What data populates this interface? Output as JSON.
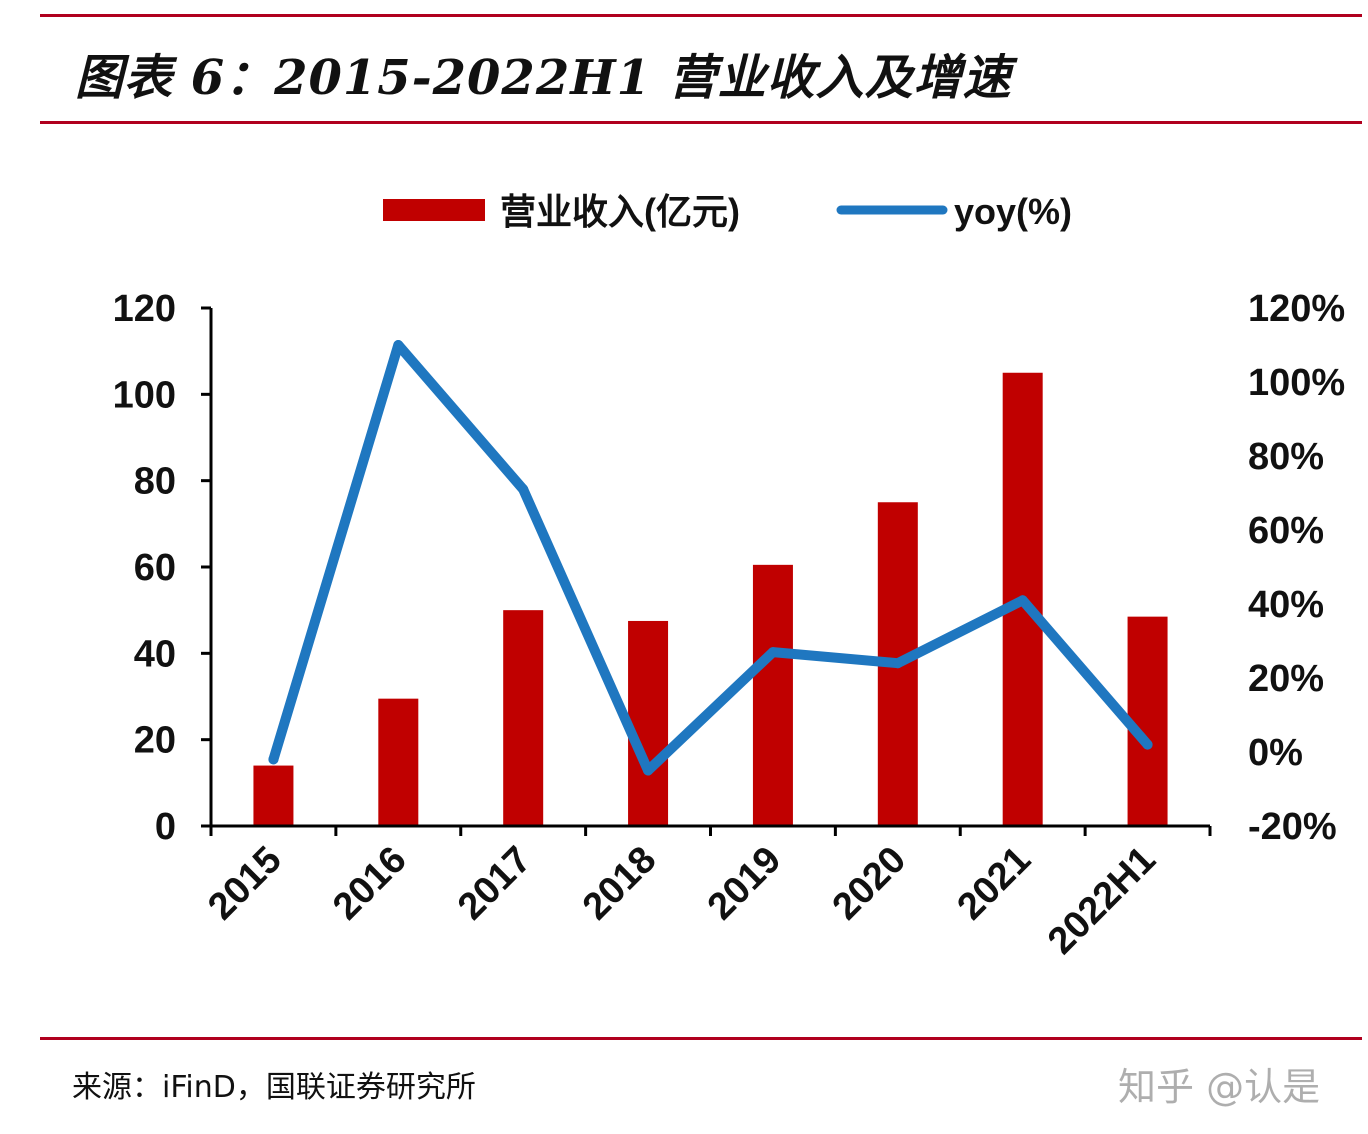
{
  "header": {
    "title": "图表 6：2015-2022H1 营业收入及增速"
  },
  "footer": {
    "source": "来源：iFinD，国联证券研究所",
    "watermark": "知乎 @认是"
  },
  "colors": {
    "bar": "#c00000",
    "line": "#1f77c0",
    "rule": "#b0001e"
  },
  "chart_data": {
    "type": "bar",
    "title": "",
    "categories": [
      "2015",
      "2016",
      "2017",
      "2018",
      "2019",
      "2020",
      "2021",
      "2022H1"
    ],
    "series": [
      {
        "name": "营业收入(亿元)",
        "type": "bar",
        "axis": "left",
        "values": [
          14,
          29.5,
          50,
          47.5,
          60.5,
          75,
          105,
          48.5
        ]
      },
      {
        "name": "yoy(%)",
        "type": "line",
        "axis": "right",
        "values": [
          -2,
          110,
          71,
          -5,
          27,
          24,
          41,
          2
        ]
      }
    ],
    "y_left": {
      "min": 0,
      "max": 120,
      "ticks": [
        "0",
        "20",
        "40",
        "60",
        "80",
        "100",
        "120"
      ]
    },
    "y_right": {
      "min": -20,
      "max": 120,
      "ticks": [
        "-20%",
        "0%",
        "20%",
        "40%",
        "60%",
        "80%",
        "100%",
        "120%"
      ]
    },
    "legend": {
      "position": "top-center",
      "entries": [
        "营业收入(亿元)",
        "yoy(%)"
      ]
    }
  }
}
